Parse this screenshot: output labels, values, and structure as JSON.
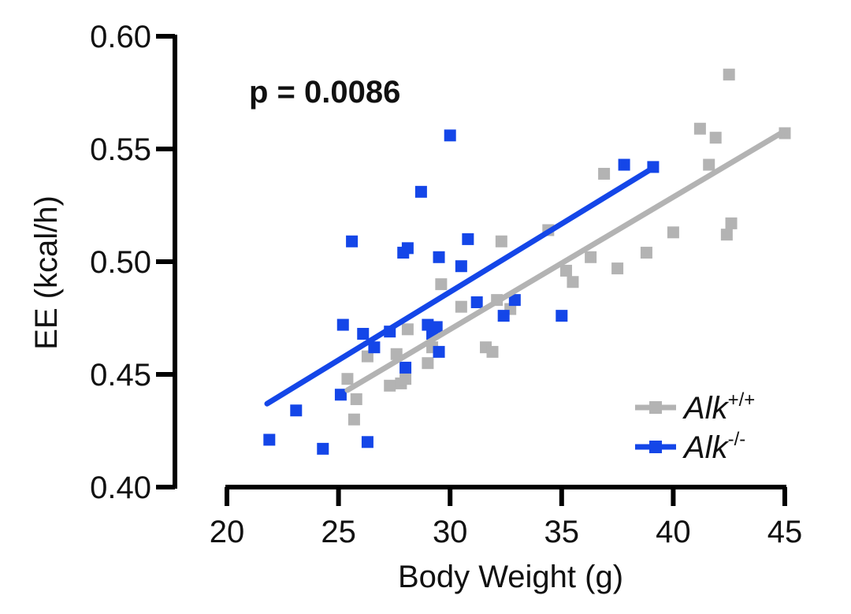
{
  "chart_data": {
    "type": "scatter",
    "title": "",
    "xlabel": "Body Weight (g)",
    "ylabel": "EE (kcal/h)",
    "xlim": [
      20,
      45
    ],
    "ylim": [
      0.4,
      0.6
    ],
    "xticks": [
      "20",
      "25",
      "30",
      "35",
      "40",
      "45"
    ],
    "yticks": [
      "0.40",
      "0.45",
      "0.50",
      "0.55",
      "0.60"
    ],
    "annotation": "p = 0.0086",
    "legend_position": "bottom-right",
    "series": [
      {
        "name": "Alk+/+",
        "legend_base": "Alk",
        "legend_sup": "+/+",
        "color": "#b3b3b3",
        "fit": {
          "x": [
            25.4,
            45.0
          ],
          "y": [
            0.443,
            0.558
          ]
        },
        "points": [
          [
            25.4,
            0.448
          ],
          [
            25.7,
            0.43
          ],
          [
            25.8,
            0.439
          ],
          [
            26.3,
            0.458
          ],
          [
            27.3,
            0.445
          ],
          [
            27.6,
            0.459
          ],
          [
            27.8,
            0.446
          ],
          [
            28.0,
            0.448
          ],
          [
            28.1,
            0.47
          ],
          [
            29.0,
            0.455
          ],
          [
            29.2,
            0.462
          ],
          [
            29.6,
            0.49
          ],
          [
            30.5,
            0.48
          ],
          [
            31.6,
            0.462
          ],
          [
            31.9,
            0.46
          ],
          [
            32.1,
            0.483
          ],
          [
            32.3,
            0.509
          ],
          [
            32.7,
            0.479
          ],
          [
            34.4,
            0.514
          ],
          [
            35.2,
            0.496
          ],
          [
            35.5,
            0.491
          ],
          [
            36.3,
            0.502
          ],
          [
            36.9,
            0.539
          ],
          [
            37.5,
            0.497
          ],
          [
            38.8,
            0.504
          ],
          [
            40.0,
            0.513
          ],
          [
            41.2,
            0.559
          ],
          [
            41.6,
            0.543
          ],
          [
            41.9,
            0.555
          ],
          [
            42.4,
            0.512
          ],
          [
            42.5,
            0.583
          ],
          [
            42.6,
            0.517
          ],
          [
            45.0,
            0.557
          ]
        ]
      },
      {
        "name": "Alk-/-",
        "legend_base": "Alk",
        "legend_sup": "-/-",
        "color": "#1446e8",
        "fit": {
          "x": [
            21.8,
            39.0
          ],
          "y": [
            0.437,
            0.541
          ]
        },
        "points": [
          [
            21.9,
            0.421
          ],
          [
            23.1,
            0.434
          ],
          [
            24.3,
            0.417
          ],
          [
            25.1,
            0.441
          ],
          [
            25.2,
            0.472
          ],
          [
            25.6,
            0.509
          ],
          [
            26.1,
            0.468
          ],
          [
            26.3,
            0.42
          ],
          [
            26.6,
            0.462
          ],
          [
            27.3,
            0.469
          ],
          [
            27.9,
            0.504
          ],
          [
            28.0,
            0.453
          ],
          [
            28.1,
            0.506
          ],
          [
            28.7,
            0.531
          ],
          [
            29.0,
            0.472
          ],
          [
            29.2,
            0.468
          ],
          [
            29.4,
            0.471
          ],
          [
            29.5,
            0.46
          ],
          [
            29.5,
            0.502
          ],
          [
            30.0,
            0.556
          ],
          [
            30.5,
            0.498
          ],
          [
            30.8,
            0.51
          ],
          [
            31.2,
            0.482
          ],
          [
            32.4,
            0.476
          ],
          [
            32.9,
            0.483
          ],
          [
            35.0,
            0.476
          ],
          [
            37.8,
            0.543
          ],
          [
            39.1,
            0.542
          ]
        ]
      }
    ]
  }
}
